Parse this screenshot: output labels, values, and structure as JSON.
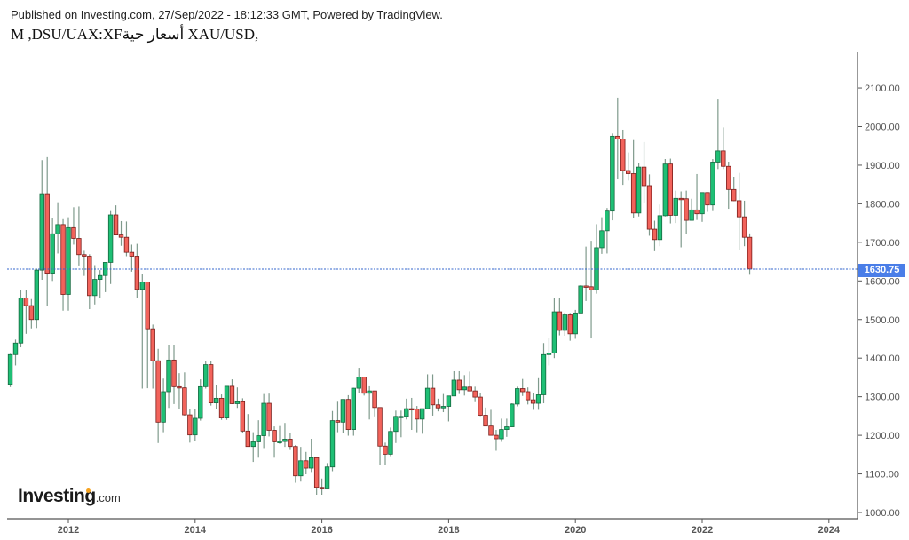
{
  "header": {
    "published": "Published on Investing.com, 27/Sep/2022 - 18:12:33 GMT, Powered by TradingView.",
    "symbol_line": "M ,DSU/UAX:XFأسعار حية XAU/USD,"
  },
  "logo": {
    "main": "Investing",
    "suffix": ".com"
  },
  "current_price": {
    "value": "1630.75",
    "color": "#4a7ee8"
  },
  "colors": {
    "up_body": "#1fbf75",
    "up_border": "#14693f",
    "down_body": "#f2635b",
    "down_border": "#7a1d1a",
    "wick": "#7f9a8c",
    "axis": "#555555",
    "tick_text": "#555555",
    "price_line": "#3366cc"
  },
  "chart_data": {
    "type": "candlestick",
    "title": "XAU/USD, M",
    "xlabel": "",
    "ylabel": "",
    "interval": "monthly",
    "ylim": [
      980,
      2180
    ],
    "y_ticks": [
      1000,
      1100,
      1200,
      1300,
      1400,
      1500,
      1600,
      1700,
      1800,
      1900,
      2000,
      2100
    ],
    "y_tick_labels": [
      "1000.00",
      "1100.00",
      "1200.00",
      "1300.00",
      "1400.00",
      "1500.00",
      "1600.00",
      "1700.00",
      "1800.00",
      "1900.00",
      "2000.00",
      "2100.00"
    ],
    "x_ticks": [
      "2012",
      "2014",
      "2016",
      "2018",
      "2020",
      "2022",
      "2024"
    ],
    "grid": false,
    "last_price": 1630.75,
    "start": "2011-02",
    "ohlc": [
      [
        1332,
        1411,
        1325,
        1409
      ],
      [
        1409,
        1448,
        1381,
        1439
      ],
      [
        1439,
        1576,
        1428,
        1556
      ],
      [
        1556,
        1577,
        1463,
        1536
      ],
      [
        1536,
        1553,
        1477,
        1500
      ],
      [
        1500,
        1632,
        1478,
        1628
      ],
      [
        1628,
        1913,
        1603,
        1826
      ],
      [
        1826,
        1921,
        1535,
        1620
      ],
      [
        1620,
        1764,
        1600,
        1722
      ],
      [
        1722,
        1804,
        1671,
        1746
      ],
      [
        1746,
        1760,
        1523,
        1565
      ],
      [
        1565,
        1765,
        1523,
        1738
      ],
      [
        1738,
        1791,
        1694,
        1710
      ],
      [
        1710,
        1793,
        1640,
        1668
      ],
      [
        1668,
        1678,
        1613,
        1664
      ],
      [
        1664,
        1669,
        1527,
        1562
      ],
      [
        1562,
        1641,
        1539,
        1604
      ],
      [
        1604,
        1628,
        1555,
        1614
      ],
      [
        1614,
        1648,
        1571,
        1648
      ],
      [
        1648,
        1781,
        1592,
        1771
      ],
      [
        1771,
        1796,
        1718,
        1719
      ],
      [
        1719,
        1755,
        1691,
        1713
      ],
      [
        1713,
        1754,
        1664,
        1674
      ],
      [
        1674,
        1694,
        1624,
        1664
      ],
      [
        1664,
        1696,
        1555,
        1578
      ],
      [
        1578,
        1617,
        1321,
        1597
      ],
      [
        1597,
        1487,
        1322,
        1476
      ],
      [
        1476,
        1487,
        1321,
        1393
      ],
      [
        1393,
        1424,
        1180,
        1234
      ],
      [
        1234,
        1347,
        1208,
        1313
      ],
      [
        1313,
        1433,
        1271,
        1395
      ],
      [
        1395,
        1434,
        1281,
        1326
      ],
      [
        1326,
        1361,
        1267,
        1323
      ],
      [
        1323,
        1363,
        1251,
        1253
      ],
      [
        1253,
        1268,
        1181,
        1201
      ],
      [
        1201,
        1268,
        1186,
        1244
      ],
      [
        1244,
        1345,
        1238,
        1326
      ],
      [
        1326,
        1392,
        1321,
        1383
      ],
      [
        1383,
        1392,
        1277,
        1284
      ],
      [
        1284,
        1331,
        1268,
        1296
      ],
      [
        1296,
        1306,
        1240,
        1245
      ],
      [
        1245,
        1327,
        1240,
        1327
      ],
      [
        1327,
        1345,
        1281,
        1282
      ],
      [
        1282,
        1324,
        1271,
        1287
      ],
      [
        1287,
        1296,
        1206,
        1211
      ],
      [
        1211,
        1255,
        1181,
        1171
      ],
      [
        1171,
        1208,
        1131,
        1183
      ],
      [
        1183,
        1239,
        1142,
        1199
      ],
      [
        1199,
        1307,
        1167,
        1283
      ],
      [
        1283,
        1308,
        1197,
        1213
      ],
      [
        1213,
        1223,
        1142,
        1183
      ],
      [
        1183,
        1224,
        1178,
        1184
      ],
      [
        1184,
        1232,
        1170,
        1190
      ],
      [
        1190,
        1205,
        1162,
        1171
      ],
      [
        1171,
        1175,
        1077,
        1095
      ],
      [
        1095,
        1170,
        1080,
        1134
      ],
      [
        1134,
        1157,
        1099,
        1115
      ],
      [
        1115,
        1191,
        1105,
        1142
      ],
      [
        1142,
        1145,
        1046,
        1065
      ],
      [
        1065,
        1088,
        1046,
        1061
      ],
      [
        1061,
        1128,
        1061,
        1118
      ],
      [
        1118,
        1263,
        1107,
        1238
      ],
      [
        1238,
        1287,
        1208,
        1234
      ],
      [
        1234,
        1284,
        1207,
        1293
      ],
      [
        1293,
        1304,
        1199,
        1215
      ],
      [
        1215,
        1323,
        1199,
        1322
      ],
      [
        1322,
        1375,
        1310,
        1351
      ],
      [
        1351,
        1352,
        1303,
        1309
      ],
      [
        1309,
        1327,
        1241,
        1315
      ],
      [
        1315,
        1306,
        1249,
        1272
      ],
      [
        1272,
        1264,
        1123,
        1172
      ],
      [
        1172,
        1181,
        1123,
        1151
      ],
      [
        1151,
        1220,
        1146,
        1210
      ],
      [
        1210,
        1264,
        1180,
        1249
      ],
      [
        1249,
        1264,
        1195,
        1249
      ],
      [
        1249,
        1295,
        1241,
        1269
      ],
      [
        1269,
        1297,
        1214,
        1268
      ],
      [
        1268,
        1276,
        1208,
        1242
      ],
      [
        1242,
        1269,
        1204,
        1269
      ],
      [
        1269,
        1358,
        1267,
        1322
      ],
      [
        1322,
        1358,
        1251,
        1279
      ],
      [
        1279,
        1295,
        1262,
        1271
      ],
      [
        1271,
        1307,
        1260,
        1275
      ],
      [
        1275,
        1302,
        1236,
        1302
      ],
      [
        1302,
        1366,
        1302,
        1343
      ],
      [
        1343,
        1366,
        1307,
        1318
      ],
      [
        1318,
        1356,
        1303,
        1325
      ],
      [
        1325,
        1365,
        1321,
        1315
      ],
      [
        1315,
        1326,
        1286,
        1299
      ],
      [
        1299,
        1309,
        1250,
        1252
      ],
      [
        1252,
        1272,
        1236,
        1224
      ],
      [
        1224,
        1266,
        1211,
        1200
      ],
      [
        1200,
        1214,
        1160,
        1191
      ],
      [
        1191,
        1243,
        1183,
        1215
      ],
      [
        1215,
        1243,
        1196,
        1222
      ],
      [
        1222,
        1283,
        1221,
        1281
      ],
      [
        1281,
        1326,
        1275,
        1321
      ],
      [
        1321,
        1346,
        1302,
        1313
      ],
      [
        1313,
        1324,
        1280,
        1292
      ],
      [
        1292,
        1310,
        1266,
        1283
      ],
      [
        1283,
        1348,
        1266,
        1305
      ],
      [
        1305,
        1439,
        1283,
        1409
      ],
      [
        1409,
        1452,
        1381,
        1413
      ],
      [
        1413,
        1555,
        1400,
        1520
      ],
      [
        1520,
        1557,
        1459,
        1472
      ],
      [
        1472,
        1518,
        1458,
        1512
      ],
      [
        1512,
        1517,
        1445,
        1463
      ],
      [
        1463,
        1525,
        1450,
        1517
      ],
      [
        1517,
        1589,
        1517,
        1587
      ],
      [
        1587,
        1689,
        1548,
        1585
      ],
      [
        1585,
        1704,
        1451,
        1577
      ],
      [
        1577,
        1747,
        1567,
        1686
      ],
      [
        1686,
        1765,
        1670,
        1730
      ],
      [
        1730,
        1789,
        1671,
        1781
      ],
      [
        1781,
        1982,
        1757,
        1975
      ],
      [
        1975,
        2075,
        1863,
        1968
      ],
      [
        1968,
        1992,
        1849,
        1886
      ],
      [
        1886,
        1933,
        1860,
        1878
      ],
      [
        1878,
        1965,
        1764,
        1776
      ],
      [
        1776,
        1906,
        1767,
        1895
      ],
      [
        1895,
        1960,
        1802,
        1847
      ],
      [
        1847,
        1876,
        1717,
        1734
      ],
      [
        1734,
        1756,
        1677,
        1707
      ],
      [
        1707,
        1798,
        1690,
        1769
      ],
      [
        1769,
        1916,
        1767,
        1903
      ],
      [
        1903,
        1917,
        1749,
        1770
      ],
      [
        1770,
        1834,
        1750,
        1814
      ],
      [
        1814,
        1832,
        1687,
        1813
      ],
      [
        1813,
        1834,
        1721,
        1757
      ],
      [
        1757,
        1813,
        1758,
        1784
      ],
      [
        1784,
        1877,
        1758,
        1774
      ],
      [
        1774,
        1806,
        1753,
        1829
      ],
      [
        1829,
        1830,
        1779,
        1797
      ],
      [
        1797,
        1916,
        1781,
        1908
      ],
      [
        1908,
        2070,
        1890,
        1937
      ],
      [
        1937,
        1998,
        1890,
        1897
      ],
      [
        1897,
        1909,
        1787,
        1837
      ],
      [
        1837,
        1870,
        1807,
        1808
      ],
      [
        1808,
        1880,
        1680,
        1766
      ],
      [
        1766,
        1808,
        1690,
        1713
      ],
      [
        1713,
        1723,
        1616,
        1631
      ]
    ]
  }
}
